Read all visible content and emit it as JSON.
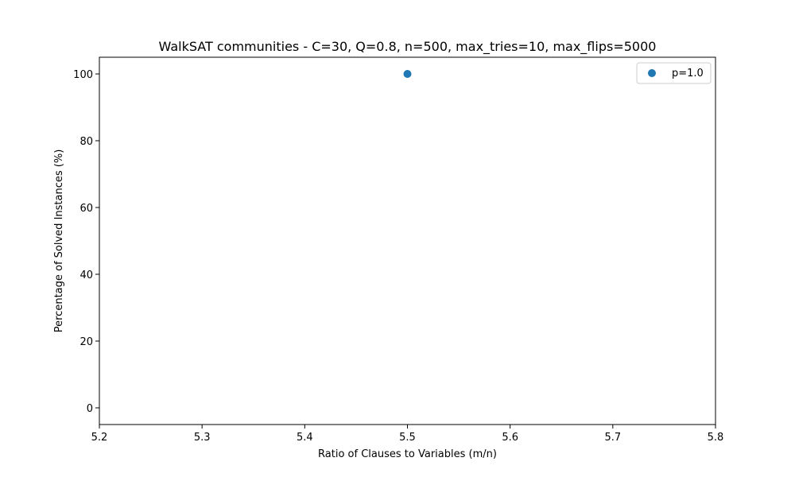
{
  "chart_data": {
    "type": "scatter",
    "title": "WalkSAT communities - C=30, Q=0.8, n=500, max_tries=10, max_flips=5000",
    "xlabel": "Ratio of Clauses to Variables (m/n)",
    "ylabel": "Percentage of Solved Instances (%)",
    "xlim": [
      5.2,
      5.8
    ],
    "ylim": [
      -5,
      105
    ],
    "xticks": [
      5.2,
      5.3,
      5.4,
      5.5,
      5.6,
      5.7,
      5.8
    ],
    "xtick_labels": [
      "5.2",
      "5.3",
      "5.4",
      "5.5",
      "5.6",
      "5.7",
      "5.8"
    ],
    "yticks": [
      0,
      20,
      40,
      60,
      80,
      100
    ],
    "ytick_labels": [
      "0",
      "20",
      "40",
      "60",
      "80",
      "100"
    ],
    "grid": false,
    "legend_position": "top-right",
    "series": [
      {
        "name": "p=1.0",
        "color": "#1f77b4",
        "x": [
          5.5
        ],
        "y": [
          100
        ]
      }
    ]
  }
}
